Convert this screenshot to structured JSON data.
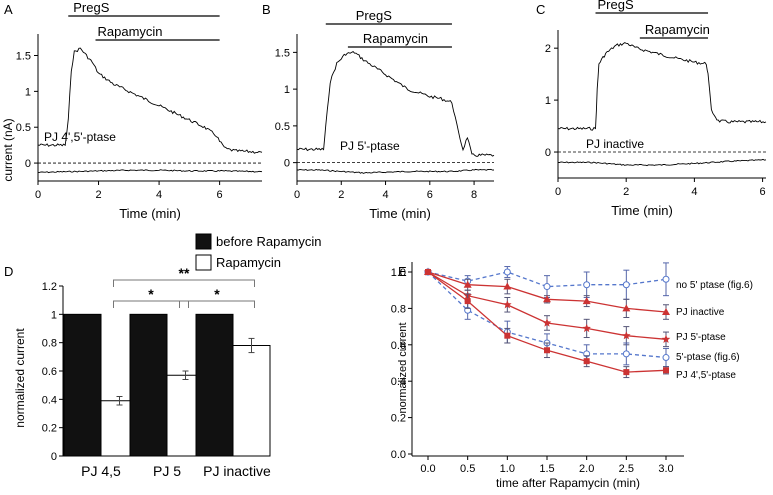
{
  "chart_data": [
    {
      "panel": "A",
      "type": "line",
      "xlabel": "Time (min)",
      "ylabel": "current (nA)",
      "xticks": [
        0,
        2,
        4,
        6
      ],
      "yticks": [
        0,
        0.5,
        1,
        1.5
      ],
      "xlim": [
        0,
        7.4
      ],
      "ylim": [
        -0.25,
        1.8
      ],
      "bars": [
        {
          "label": "PregS",
          "x0": 1.0,
          "x1": 6.0
        },
        {
          "label": "Rapamycin",
          "x0": 1.9,
          "x1": 6.0
        }
      ],
      "trace_label": "PJ 4',5'-ptase",
      "trace": [
        [
          0.0,
          0.25
        ],
        [
          0.9,
          0.25
        ],
        [
          1.0,
          0.6
        ],
        [
          1.1,
          1.3
        ],
        [
          1.2,
          1.55
        ],
        [
          1.4,
          1.6
        ],
        [
          1.6,
          1.5
        ],
        [
          1.8,
          1.4
        ],
        [
          2.0,
          1.25
        ],
        [
          2.5,
          1.1
        ],
        [
          3.0,
          1.0
        ],
        [
          3.5,
          0.9
        ],
        [
          4.0,
          0.8
        ],
        [
          4.5,
          0.7
        ],
        [
          5.0,
          0.6
        ],
        [
          5.5,
          0.5
        ],
        [
          5.9,
          0.38
        ],
        [
          6.0,
          0.3
        ],
        [
          6.2,
          0.2
        ],
        [
          6.5,
          0.17
        ],
        [
          7.4,
          0.15
        ]
      ],
      "baseline_trace": [
        [
          0.0,
          -0.13
        ],
        [
          1.0,
          -0.12
        ],
        [
          2.0,
          -0.11
        ],
        [
          3.0,
          -0.1
        ],
        [
          4.0,
          -0.1
        ],
        [
          5.0,
          -0.11
        ],
        [
          6.0,
          -0.11
        ],
        [
          7.4,
          -0.12
        ]
      ]
    },
    {
      "panel": "B",
      "type": "line",
      "xlabel": "Time (min)",
      "ylabel": "",
      "xticks": [
        0,
        2,
        4,
        6,
        8
      ],
      "yticks": [
        0,
        0.5,
        1,
        1.5
      ],
      "xlim": [
        0,
        8.9
      ],
      "ylim": [
        -0.25,
        1.75
      ],
      "bars": [
        {
          "label": "PregS",
          "x0": 1.3,
          "x1": 7.0
        },
        {
          "label": "Rapamycin",
          "x0": 2.3,
          "x1": 7.0
        }
      ],
      "trace_label": "PJ 5'-ptase",
      "trace": [
        [
          0.0,
          0.18
        ],
        [
          1.2,
          0.18
        ],
        [
          1.3,
          0.5
        ],
        [
          1.5,
          1.1
        ],
        [
          1.8,
          1.35
        ],
        [
          2.2,
          1.48
        ],
        [
          2.6,
          1.5
        ],
        [
          3.0,
          1.4
        ],
        [
          3.5,
          1.3
        ],
        [
          4.0,
          1.2
        ],
        [
          4.5,
          1.1
        ],
        [
          5.0,
          1.0
        ],
        [
          5.5,
          0.95
        ],
        [
          6.0,
          0.9
        ],
        [
          6.5,
          0.87
        ],
        [
          7.0,
          0.82
        ],
        [
          7.3,
          0.4
        ],
        [
          7.5,
          0.18
        ],
        [
          7.7,
          0.35
        ],
        [
          7.9,
          0.1
        ],
        [
          8.3,
          0.1
        ],
        [
          8.9,
          0.1
        ]
      ],
      "baseline_trace": [
        [
          0.0,
          -0.1
        ],
        [
          1.0,
          -0.1
        ],
        [
          2.0,
          -0.12
        ],
        [
          3.0,
          -0.14
        ],
        [
          4.0,
          -0.13
        ],
        [
          5.0,
          -0.12
        ],
        [
          6.0,
          -0.12
        ],
        [
          7.0,
          -0.12
        ],
        [
          8.0,
          -0.1
        ],
        [
          8.9,
          -0.1
        ]
      ]
    },
    {
      "panel": "C",
      "type": "line",
      "xlabel": "Time (min)",
      "ylabel": "",
      "xticks": [
        0,
        2,
        4,
        6
      ],
      "yticks": [
        0,
        1,
        2
      ],
      "xlim": [
        0,
        6.1
      ],
      "ylim": [
        -0.5,
        2.35
      ],
      "bars": [
        {
          "label": "PregS",
          "x0": 1.1,
          "x1": 4.4
        },
        {
          "label": "Rapamycin",
          "x0": 2.4,
          "x1": 4.4
        }
      ],
      "trace_label": "PJ inactive",
      "trace": [
        [
          0.0,
          0.45
        ],
        [
          1.1,
          0.45
        ],
        [
          1.15,
          1.2
        ],
        [
          1.2,
          1.7
        ],
        [
          1.4,
          1.9
        ],
        [
          1.7,
          2.05
        ],
        [
          2.0,
          2.1
        ],
        [
          2.3,
          2.0
        ],
        [
          2.6,
          1.95
        ],
        [
          3.0,
          1.88
        ],
        [
          3.5,
          1.8
        ],
        [
          4.0,
          1.73
        ],
        [
          4.35,
          1.7
        ],
        [
          4.4,
          1.5
        ],
        [
          4.5,
          0.8
        ],
        [
          4.7,
          0.6
        ],
        [
          5.0,
          0.58
        ],
        [
          6.1,
          0.58
        ]
      ],
      "baseline_trace": [
        [
          0.0,
          -0.2
        ],
        [
          1.0,
          -0.2
        ],
        [
          2.0,
          -0.25
        ],
        [
          3.0,
          -0.25
        ],
        [
          4.0,
          -0.22
        ],
        [
          5.0,
          -0.18
        ],
        [
          6.1,
          -0.15
        ]
      ]
    },
    {
      "panel": "D",
      "type": "bar",
      "ylabel": "normalized current",
      "yticks": [
        0,
        0.2,
        0.4,
        0.6,
        0.8,
        1,
        1.2
      ],
      "ylim": [
        0,
        1.2
      ],
      "categories": [
        "PJ 4,5",
        "PJ 5",
        "PJ inactive"
      ],
      "series": [
        {
          "name": "before Rapamycin",
          "color": "#111111",
          "values": [
            1,
            1,
            1
          ],
          "errors": [
            0,
            0,
            0
          ]
        },
        {
          "name": "Rapamycin",
          "color": "#ffffff",
          "values": [
            0.39,
            0.57,
            0.78
          ],
          "errors": [
            0.03,
            0.03,
            0.05
          ]
        }
      ],
      "significance": [
        {
          "from": 0,
          "to": 1,
          "label": "*"
        },
        {
          "from": 1,
          "to": 2,
          "label": "*"
        },
        {
          "from": 0,
          "to": 2,
          "label": "**"
        }
      ]
    },
    {
      "panel": "E",
      "type": "line",
      "xlabel": "time after Rapamycin (min)",
      "ylabel": "normalized current",
      "xticks": [
        0.0,
        0.5,
        1.0,
        1.5,
        2.0,
        2.5,
        3.0
      ],
      "yticks": [
        0.0,
        0.2,
        0.4,
        0.6,
        0.8,
        1.0
      ],
      "xlim": [
        -0.35,
        3.25
      ],
      "ylim": [
        0,
        1.1
      ],
      "x": [
        0.0,
        0.5,
        1.0,
        1.5,
        2.0,
        2.5,
        3.0
      ],
      "series": [
        {
          "name": "no 5' ptase (fig.6)",
          "style": "dashed",
          "color": "#5577cc",
          "marker": "circle-open",
          "values": [
            1.0,
            0.95,
            1.0,
            0.92,
            0.93,
            0.93,
            0.96
          ],
          "errors": [
            0.01,
            0.03,
            0.03,
            0.06,
            0.07,
            0.08,
            0.09
          ]
        },
        {
          "name": "PJ inactive",
          "style": "solid",
          "color": "#cc3333",
          "marker": "triangle",
          "values": [
            1.0,
            0.93,
            0.92,
            0.85,
            0.84,
            0.8,
            0.78
          ],
          "errors": [
            0.01,
            0.03,
            0.04,
            0.02,
            0.03,
            0.05,
            0.04
          ]
        },
        {
          "name": "PJ 5'-ptase",
          "style": "solid",
          "color": "#cc3333",
          "marker": "star",
          "values": [
            1.0,
            0.87,
            0.82,
            0.72,
            0.69,
            0.65,
            0.63
          ],
          "errors": [
            0.01,
            0.03,
            0.04,
            0.04,
            0.05,
            0.05,
            0.04
          ]
        },
        {
          "name": "5'-ptase (fig.6)",
          "style": "dashed",
          "color": "#5577cc",
          "marker": "circle-open",
          "values": [
            1.0,
            0.79,
            0.67,
            0.61,
            0.55,
            0.55,
            0.53
          ],
          "errors": [
            0.01,
            0.05,
            0.06,
            0.05,
            0.05,
            0.06,
            0.05
          ]
        },
        {
          "name": "PJ 4',5'-ptase",
          "style": "solid",
          "color": "#cc3333",
          "marker": "square",
          "values": [
            1.0,
            0.84,
            0.65,
            0.57,
            0.51,
            0.45,
            0.46
          ],
          "errors": [
            0.01,
            0.04,
            0.04,
            0.04,
            0.03,
            0.03,
            0.02
          ]
        }
      ]
    }
  ],
  "panel_letters": [
    "A",
    "B",
    "C",
    "D",
    "E"
  ],
  "colors": {
    "axis": "#000000",
    "black_bar": "#111111",
    "red": "#cc3333",
    "blue": "#5577cc",
    "errbar_blue": "#5566aa"
  }
}
